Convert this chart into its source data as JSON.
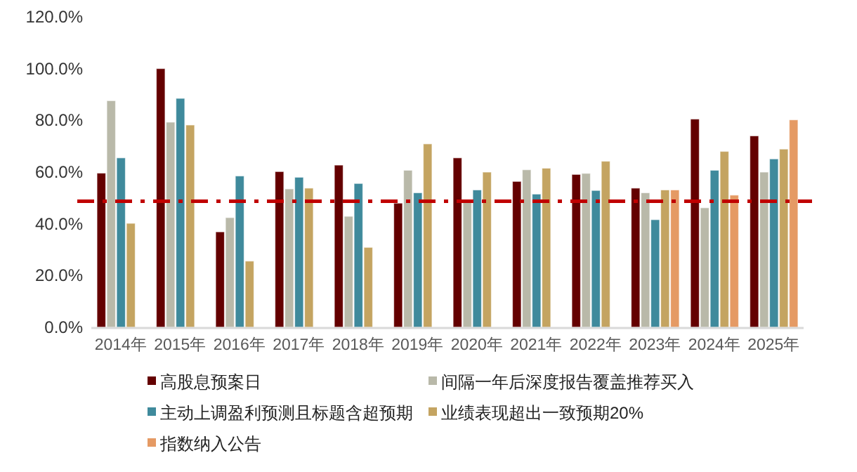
{
  "chart_data": {
    "type": "bar",
    "categories": [
      "2014年",
      "2015年",
      "2016年",
      "2017年",
      "2018年",
      "2019年",
      "2020年",
      "2021年",
      "2022年",
      "2023年",
      "2024年",
      "2025年"
    ],
    "series": [
      {
        "name": "高股息预案日",
        "color": "#640000",
        "values": [
          59.6,
          100,
          36.9,
          60.2,
          62.7,
          48,
          65.5,
          56.4,
          59.1,
          53.8,
          80.5,
          74
        ]
      },
      {
        "name": "间隔一年后深度报告覆盖推荐买入",
        "color": "#b9b9a9",
        "values": [
          87.6,
          79.3,
          42.4,
          53.5,
          42.9,
          60.7,
          49.1,
          60.9,
          59.5,
          52,
          46.2,
          60
        ]
      },
      {
        "name": "主动上调盈利预测且标题含超预期",
        "color": "#3f8a9c",
        "values": [
          65.5,
          88.5,
          58.5,
          58,
          55.6,
          52,
          53.1,
          51.5,
          52.9,
          41.6,
          60.7,
          65.1
        ]
      },
      {
        "name": "业绩表现超出一致预期20%",
        "color": "#c4a461",
        "values": [
          40.2,
          78.2,
          25.6,
          53.8,
          30.9,
          70.9,
          60,
          61.5,
          64.2,
          53.1,
          68,
          68.9
        ]
      },
      {
        "name": "指数纳入公告",
        "color": "#e59a64",
        "values": [
          null,
          null,
          null,
          null,
          null,
          null,
          null,
          null,
          null,
          53.1,
          51.1,
          80.2
        ]
      }
    ],
    "ylim": [
      0,
      120
    ],
    "yticks": [
      {
        "value": 0,
        "label": "0.0%"
      },
      {
        "value": 20,
        "label": "20.0%"
      },
      {
        "value": 40,
        "label": "40.0%"
      },
      {
        "value": 60,
        "label": "60.0%"
      },
      {
        "value": 80,
        "label": "80.0%"
      },
      {
        "value": 100,
        "label": "100.0%"
      },
      {
        "value": 120,
        "label": "120.0%"
      }
    ],
    "ref_lines": [
      {
        "axis": "y",
        "value": 48.7,
        "color": "#c00000",
        "line_style": "dashdot"
      }
    ],
    "grid": false,
    "legend": "bottom"
  }
}
